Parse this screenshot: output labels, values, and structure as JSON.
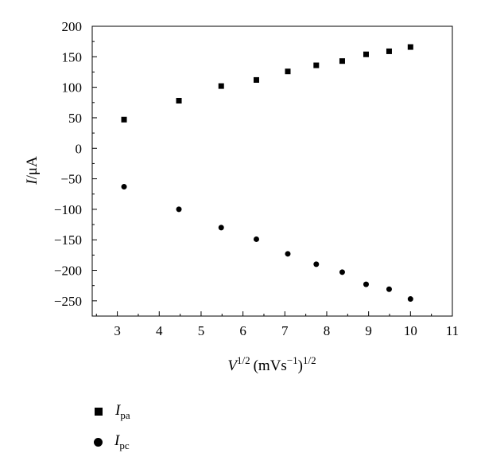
{
  "chart_data": {
    "type": "scatter",
    "xlabel": {
      "symbol": "V",
      "sup": "1/2",
      "unit": "(mVs",
      "unit_sup": "−1",
      "unit_end": ")",
      "unit_end_sup": "1/2"
    },
    "ylabel": {
      "symbol": "I",
      "unit": "/μA"
    },
    "xlim": [
      2.4,
      11
    ],
    "ylim": [
      -275,
      200
    ],
    "x_ticks": [
      3,
      4,
      5,
      6,
      7,
      8,
      9,
      10,
      11
    ],
    "x_tick_labels": [
      "3",
      "4",
      "5",
      "6",
      "7",
      "8",
      "9",
      "10",
      "11"
    ],
    "y_ticks": [
      -250,
      -200,
      -150,
      -100,
      -50,
      0,
      50,
      100,
      150,
      200
    ],
    "y_tick_labels": [
      "−250",
      "−200",
      "−150",
      "−100",
      "−50",
      "0",
      "50",
      "100",
      "150",
      "200"
    ],
    "grid": false,
    "legend_position": "bottom-left",
    "series": [
      {
        "name": "Ipa",
        "label_main": "I",
        "label_sub": "pa",
        "marker": "square",
        "color": "#000000",
        "x": [
          3.16,
          4.47,
          5.48,
          6.32,
          7.07,
          7.75,
          8.37,
          8.94,
          9.49,
          10.0
        ],
        "y": [
          47,
          78,
          102,
          112,
          126,
          136,
          143,
          154,
          159,
          166
        ]
      },
      {
        "name": "Ipc",
        "label_main": "I",
        "label_sub": "pc",
        "marker": "circle",
        "color": "#000000",
        "x": [
          3.16,
          4.47,
          5.48,
          6.32,
          7.07,
          7.75,
          8.37,
          8.94,
          9.49,
          10.0
        ],
        "y": [
          -63,
          -100,
          -130,
          -149,
          -173,
          -190,
          -203,
          -223,
          -231,
          -247
        ]
      }
    ]
  }
}
